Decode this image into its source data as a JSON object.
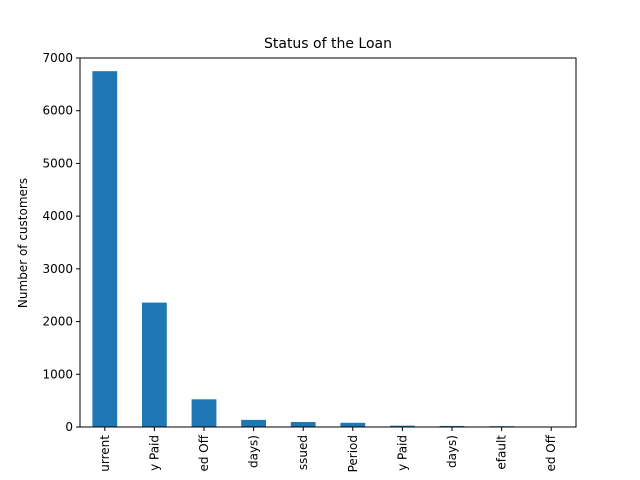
{
  "colors": {
    "bar": "#1f77b4",
    "axis": "#000000",
    "background": "#ffffff"
  },
  "chart_data": {
    "type": "bar",
    "title": "Status of the Loan",
    "xlabel": "",
    "ylabel": "Number of customers",
    "categories": [
      "urrent",
      "y Paid",
      "ed Off",
      "days)",
      "ssued",
      "Period",
      "y Paid",
      "days)",
      "efault",
      "ed Off"
    ],
    "values": [
      6750,
      2360,
      525,
      135,
      95,
      80,
      25,
      20,
      15,
      5
    ],
    "ylim": [
      0,
      7000
    ],
    "yticks": [
      0,
      1000,
      2000,
      3000,
      4000,
      5000,
      6000,
      7000
    ],
    "grid": false,
    "legend": false
  }
}
